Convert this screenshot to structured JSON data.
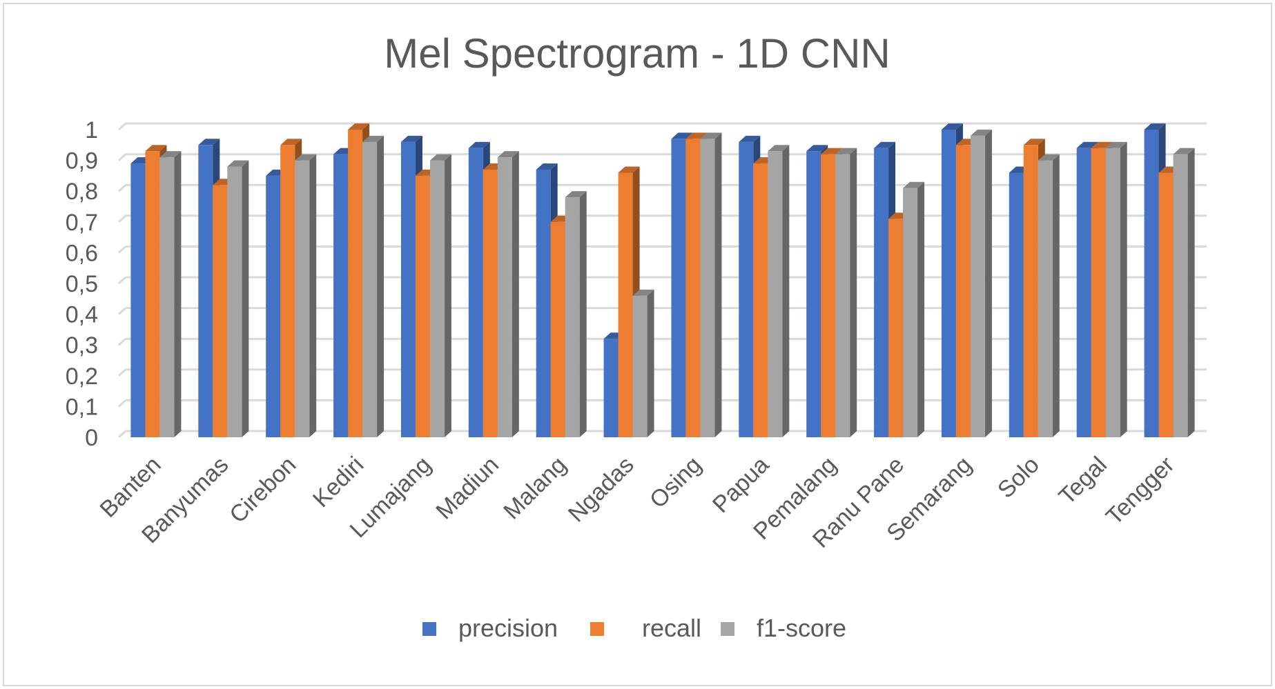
{
  "chart_data": {
    "type": "bar",
    "title": "Mel Spectrogram - 1D CNN",
    "xlabel": "",
    "ylabel": "",
    "ylim": [
      0,
      1
    ],
    "y_ticks": [
      "0",
      "0,1",
      "0,2",
      "0,3",
      "0,4",
      "0,5",
      "0,6",
      "0,7",
      "0,8",
      "0,9",
      "1"
    ],
    "grid": true,
    "legend_position": "bottom",
    "categories": [
      "Banten",
      "Banyumas",
      "Cirebon",
      "Kediri",
      "Lumajang",
      "Madiun",
      "Malang",
      "Ngadas",
      "Osing",
      "Papua",
      "Pemalang",
      "Ranu Pane",
      "Semarang",
      "Solo",
      "Tegal",
      "Tengger"
    ],
    "series": [
      {
        "name": "precision",
        "color": "#4472c4",
        "values": [
          0.89,
          0.95,
          0.85,
          0.92,
          0.96,
          0.94,
          0.87,
          0.32,
          0.97,
          0.96,
          0.93,
          0.94,
          1.0,
          0.86,
          0.94,
          1.0
        ]
      },
      {
        "name": "recall",
        "color": "#ed7d31",
        "values": [
          0.93,
          0.82,
          0.95,
          1.0,
          0.85,
          0.87,
          0.7,
          0.86,
          0.97,
          0.89,
          0.92,
          0.71,
          0.95,
          0.95,
          0.94,
          0.86
        ]
      },
      {
        "name": "f1-score",
        "color": "#a5a5a5",
        "values": [
          0.91,
          0.88,
          0.9,
          0.96,
          0.9,
          0.91,
          0.78,
          0.46,
          0.97,
          0.93,
          0.92,
          0.81,
          0.98,
          0.9,
          0.94,
          0.92
        ]
      }
    ]
  }
}
